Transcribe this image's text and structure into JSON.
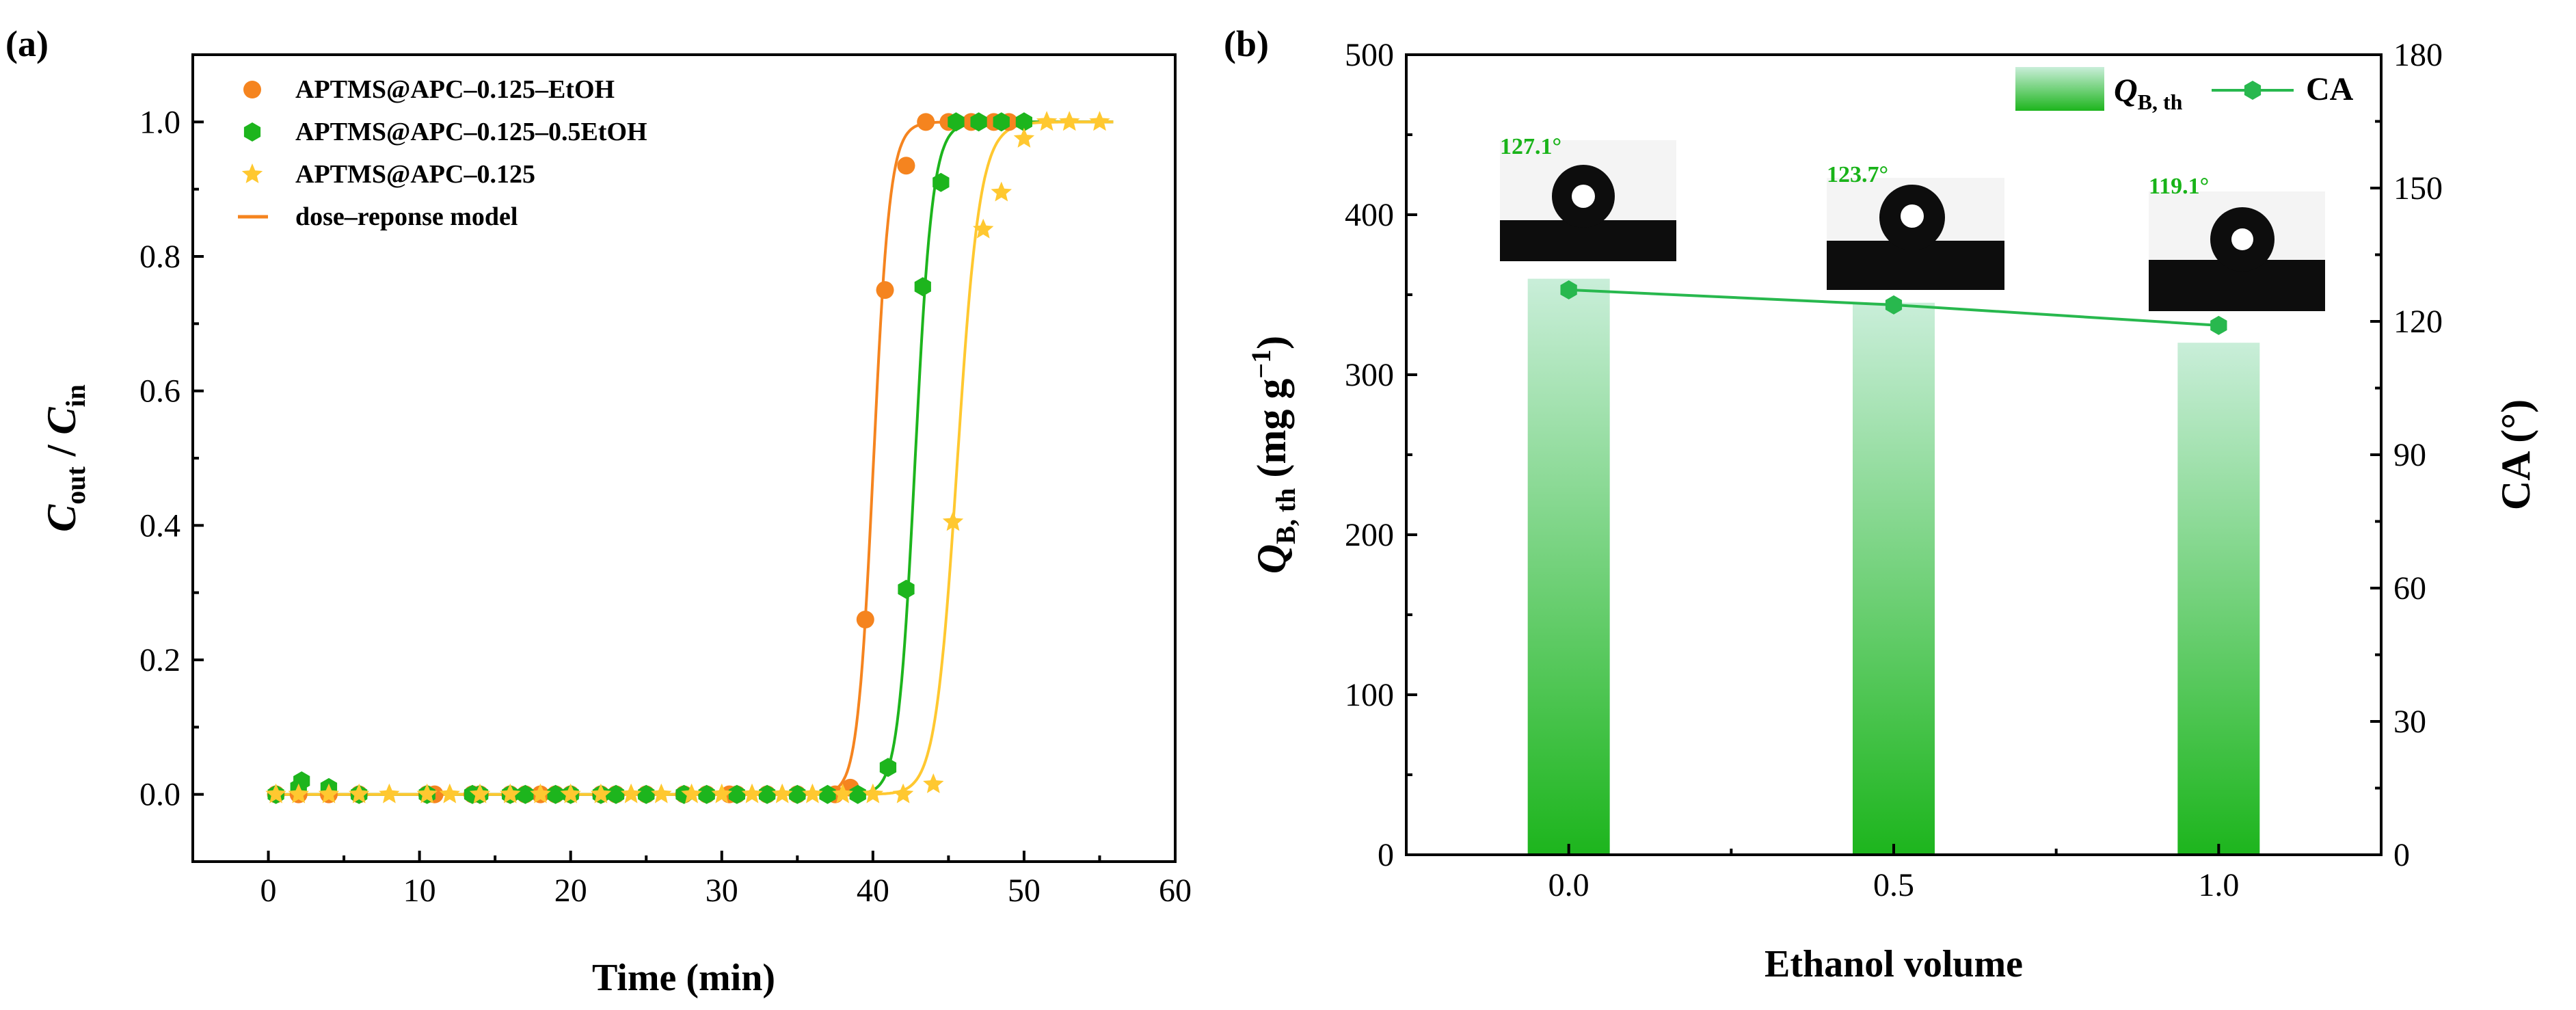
{
  "colors": {
    "orange": "#F5841F",
    "green": "#1DB51D",
    "yellow": "#FFC830",
    "green_line": "#28B84E",
    "label_green": "#19B319",
    "bar_top": "#C9EED9",
    "bar_bottom": "#1DB51D"
  },
  "chart_data": [
    {
      "panel": "(a)",
      "type": "scatter",
      "xlabel": "Time (min)",
      "ylabel": {
        "main": "C",
        "sub1": "out",
        "sep": " / ",
        "main2": "C",
        "sub2": "in"
      },
      "xlim": [
        -5,
        60
      ],
      "ylim": [
        -0.1,
        1.1
      ],
      "xticks": [
        "0",
        "10",
        "20",
        "30",
        "40",
        "50",
        "60"
      ],
      "yticks": [
        "0.0",
        "0.2",
        "0.4",
        "0.6",
        "0.8",
        "1.0"
      ],
      "legend_position": "top-left",
      "legend": [
        "APTMS@APC–0.125–EtOH",
        "APTMS@APC–0.125–0.5EtOH",
        "APTMS@APC–0.125",
        "dose–reponse model"
      ],
      "series": [
        {
          "name": "APTMS@APC–0.125–EtOH",
          "color": "orange",
          "marker": "circle",
          "x": [
            0.5,
            2,
            4,
            6,
            10.5,
            11,
            13.5,
            14,
            16,
            17,
            18,
            19,
            20,
            22,
            23,
            25,
            27.5,
            29,
            30.5,
            31,
            33,
            35,
            37.5,
            38.5,
            39.5,
            40.8,
            42.2,
            43.5,
            45,
            46.5,
            48,
            49
          ],
          "y": [
            0.0,
            0.0,
            0.0,
            0.0,
            0.0,
            0.0,
            0.0,
            0.0,
            0.0,
            0.0,
            0.0,
            0.0,
            0.0,
            0.0,
            0.0,
            0.0,
            0.0,
            0.0,
            0.0,
            0.0,
            0.0,
            0.0,
            0.0,
            0.01,
            0.26,
            0.75,
            0.935,
            1.0,
            1.0,
            1.0,
            1.0,
            1.0
          ],
          "model": {
            "x0": 40.05,
            "p": 75
          }
        },
        {
          "name": "APTMS@APC–0.125–0.5EtOH",
          "color": "green",
          "marker": "hexagon",
          "x": [
            0.5,
            2,
            2.2,
            4,
            6,
            10.5,
            13.5,
            14,
            16,
            17,
            19,
            20,
            22,
            23,
            25,
            27.5,
            29,
            31,
            33,
            35,
            37,
            39,
            41,
            42.2,
            43.3,
            44.5,
            45.5,
            47,
            48.5,
            50
          ],
          "y": [
            0.0,
            0.01,
            0.02,
            0.01,
            0.0,
            0.0,
            0.0,
            0.0,
            0.0,
            0.0,
            0.0,
            0.0,
            0.0,
            0.0,
            0.0,
            0.0,
            0.0,
            0.0,
            0.0,
            0.0,
            0.0,
            0.0,
            0.04,
            0.305,
            0.755,
            0.91,
            1.0,
            1.0,
            1.0,
            1.0
          ],
          "model": {
            "x0": 42.8,
            "p": 75
          }
        },
        {
          "name": "APTMS@APC–0.125",
          "color": "yellow",
          "marker": "star",
          "x": [
            0.5,
            2,
            4,
            6,
            8,
            10.5,
            12,
            14,
            16,
            18,
            20,
            22,
            24,
            26,
            28,
            30,
            32,
            34,
            36,
            38,
            40,
            42,
            44,
            45.3,
            47.3,
            48.5,
            50,
            51.5,
            53,
            55
          ],
          "y": [
            0.0,
            0.0,
            0.0,
            0.0,
            0.0,
            0.0,
            0.0,
            0.0,
            0.0,
            0.0,
            0.0,
            0.0,
            0.0,
            0.0,
            0.0,
            0.0,
            0.0,
            0.0,
            0.0,
            0.0,
            0.0,
            0.0,
            0.015,
            0.405,
            0.84,
            0.895,
            0.975,
            1.0,
            1.0,
            1.0
          ],
          "model": {
            "x0": 45.6,
            "p": 62
          }
        }
      ]
    },
    {
      "panel": "(b)",
      "type": "bar",
      "xlabel": "Ethanol volume",
      "ylabel_left": {
        "main": "Q",
        "sub": "B, th",
        "unit": " (mg g",
        "sup": "−1",
        "close": ")"
      },
      "ylabel_right": "CA (°)",
      "categories": [
        "0.0",
        "0.5",
        "1.0"
      ],
      "xlim": [
        -0.25,
        1.25
      ],
      "ylim_left": [
        0,
        500
      ],
      "ylim_right": [
        0,
        180
      ],
      "yticks_left": [
        "0",
        "100",
        "200",
        "300",
        "400",
        "500"
      ],
      "yticks_right": [
        "0",
        "30",
        "60",
        "90",
        "120",
        "150",
        "180"
      ],
      "legend_position": "top-right",
      "series": [
        {
          "name": "QB, th",
          "legend_main": "Q",
          "legend_sub": "B, th",
          "axis": "left",
          "type": "bar",
          "values": [
            360,
            345,
            320
          ]
        },
        {
          "name": "CA",
          "axis": "right",
          "type": "line",
          "values": [
            127.1,
            123.7,
            119.1
          ]
        }
      ],
      "annotations": [
        "127.1°",
        "123.7°",
        "119.1°"
      ]
    }
  ]
}
